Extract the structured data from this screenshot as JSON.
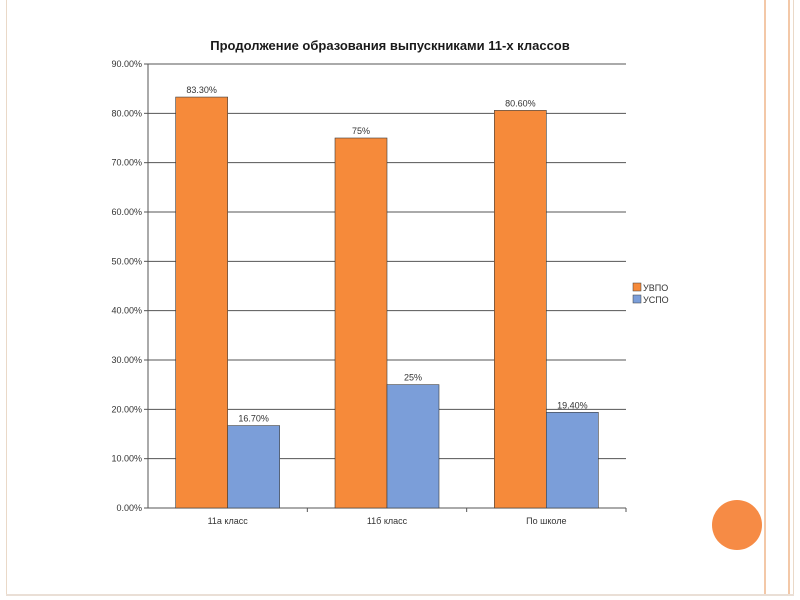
{
  "colors": {
    "orange": "#f68a3a",
    "blue": "#7b9ed9",
    "accent": "#f68b45"
  },
  "decor": {
    "circle_icon": "orange-circle"
  },
  "chart_data": {
    "type": "bar",
    "title": "Продолжение образования выпускниками 11-х классов",
    "categories": [
      "11а класс",
      "11б класс",
      "По школе"
    ],
    "series": [
      {
        "name": "УВПО",
        "values": [
          83.3,
          75,
          80.6
        ],
        "labels": [
          "83.30%",
          "75%",
          "80.60%"
        ],
        "color": "#f68a3a"
      },
      {
        "name": "УСПО",
        "values": [
          16.7,
          25,
          19.4
        ],
        "labels": [
          "16.70%",
          "25%",
          "19.40%"
        ],
        "color": "#7b9ed9"
      }
    ],
    "ylim": [
      0,
      90
    ],
    "yticks": [
      0,
      10,
      20,
      30,
      40,
      50,
      60,
      70,
      80,
      90
    ],
    "ytick_labels": [
      "0.00%",
      "10.00%",
      "20.00%",
      "30.00%",
      "40.00%",
      "50.00%",
      "60.00%",
      "70.00%",
      "80.00%",
      "90.00%"
    ],
    "grid": true,
    "legend": "right",
    "xlabel": "",
    "ylabel": ""
  }
}
